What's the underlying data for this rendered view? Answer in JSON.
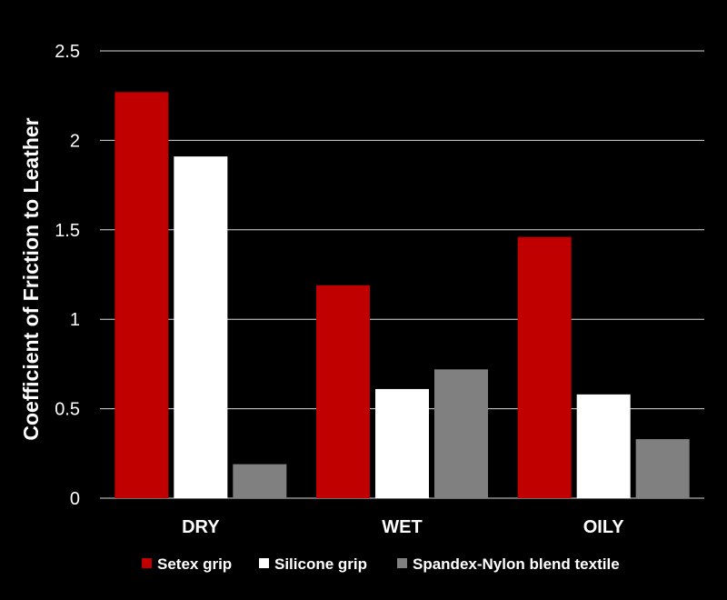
{
  "chart_data": {
    "type": "bar",
    "title": "",
    "xlabel": "",
    "ylabel": "Coefficient of Friction to Leather",
    "categories": [
      "DRY",
      "WET",
      "OILY"
    ],
    "series": [
      {
        "name": "Setex grip",
        "color": "#c00000",
        "values": [
          2.27,
          1.19,
          1.46
        ]
      },
      {
        "name": "Silicone grip",
        "color": "#ffffff",
        "values": [
          1.91,
          0.61,
          0.58
        ]
      },
      {
        "name": "Spandex-Nylon blend textile",
        "color": "#808080",
        "values": [
          0.19,
          0.72,
          0.33
        ]
      }
    ],
    "ylim": [
      0,
      2.5
    ],
    "yticks": [
      0,
      0.5,
      1,
      1.5,
      2,
      2.5
    ],
    "ytick_labels": [
      "0",
      "0.5",
      "1",
      "1.5",
      "2",
      "2.5"
    ],
    "grid": true,
    "legend_position": "bottom",
    "background": "#000000",
    "gridline_color": "#d9d9d9"
  }
}
